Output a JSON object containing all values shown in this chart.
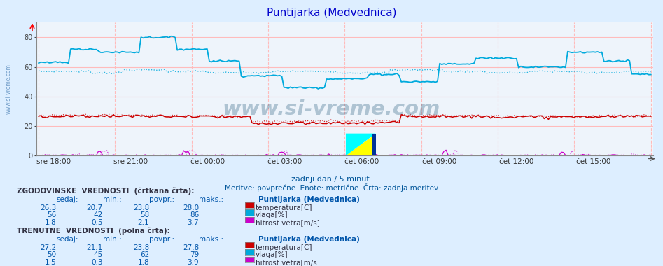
{
  "title": "Puntijarka (Medvednica)",
  "title_color": "#0000cc",
  "bg_color": "#ddeeff",
  "plot_bg_color": "#eef4fb",
  "grid_color_h": "#ffbbbb",
  "grid_color_v": "#ffbbbb",
  "subtitle1": "zadnji dan / 5 minut.",
  "subtitle2": "Meritve: povprečne  Enote: metrične  Črta: zadnja meritev",
  "xlabel_times": [
    "sre 18:00",
    "sre 21:00",
    "čet 00:00",
    "čet 03:00",
    "čet 06:00",
    "čet 09:00",
    "čet 12:00",
    "čet 15:00"
  ],
  "ymin": 0,
  "ymax": 90,
  "yticks": [
    0,
    20,
    40,
    60,
    80
  ],
  "n_points": 288,
  "hist_label_title": "ZGODOVINSKE  VREDNOSTI  (črtkana črta):",
  "curr_label_title": "TRENUTNE  VREDNOSTI  (polna črta):",
  "col_headers": [
    "sedaj:",
    "min.:",
    "povpr.:",
    "maks.:"
  ],
  "station": "Puntijarka (Medvednica)",
  "hist_temp": [
    26.3,
    20.7,
    23.8,
    28.0
  ],
  "hist_vlaga": [
    56,
    42,
    58,
    86
  ],
  "hist_veter": [
    1.8,
    0.5,
    2.1,
    3.7
  ],
  "curr_temp": [
    27.2,
    21.1,
    23.8,
    27.8
  ],
  "curr_vlaga": [
    50,
    45,
    62,
    79
  ],
  "curr_veter": [
    1.5,
    0.3,
    1.8,
    3.9
  ],
  "temp_color": "#cc0000",
  "vlaga_color": "#00aadd",
  "veter_color": "#cc00cc",
  "temp_label": "temperatura[C]",
  "vlaga_label": "vlaga[%]",
  "veter_label": "hitrost vetra[m/s]",
  "watermark": "www.si-vreme.com",
  "watermark_color": "#1a5276",
  "sidevreme_color": "#5588bb"
}
